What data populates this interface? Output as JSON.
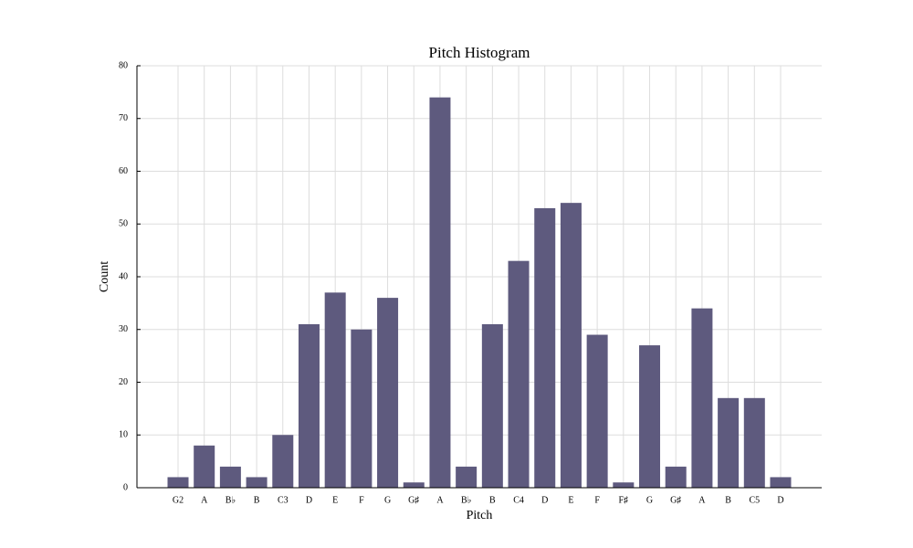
{
  "chart_data": {
    "type": "bar",
    "title": "Pitch Histogram",
    "x_label": "Pitch",
    "y_label": "Count",
    "categories": [
      "G2",
      "A",
      "B♭",
      "B",
      "C3",
      "D",
      "E",
      "F",
      "G",
      "G♯",
      "A",
      "B♭",
      "B",
      "C4",
      "D",
      "E",
      "F",
      "F♯",
      "G",
      "G♯",
      "A",
      "B",
      "C5",
      "D"
    ],
    "values": [
      2,
      8,
      4,
      2,
      10,
      31,
      37,
      30,
      36,
      1,
      74,
      4,
      31,
      43,
      53,
      54,
      29,
      1,
      27,
      4,
      34,
      17,
      17,
      2
    ],
    "color": "#5e5a7e",
    "ylim": [
      0,
      80
    ],
    "yticks": [
      0,
      10,
      20,
      30,
      40,
      50,
      60,
      70,
      80
    ],
    "grid": true
  }
}
